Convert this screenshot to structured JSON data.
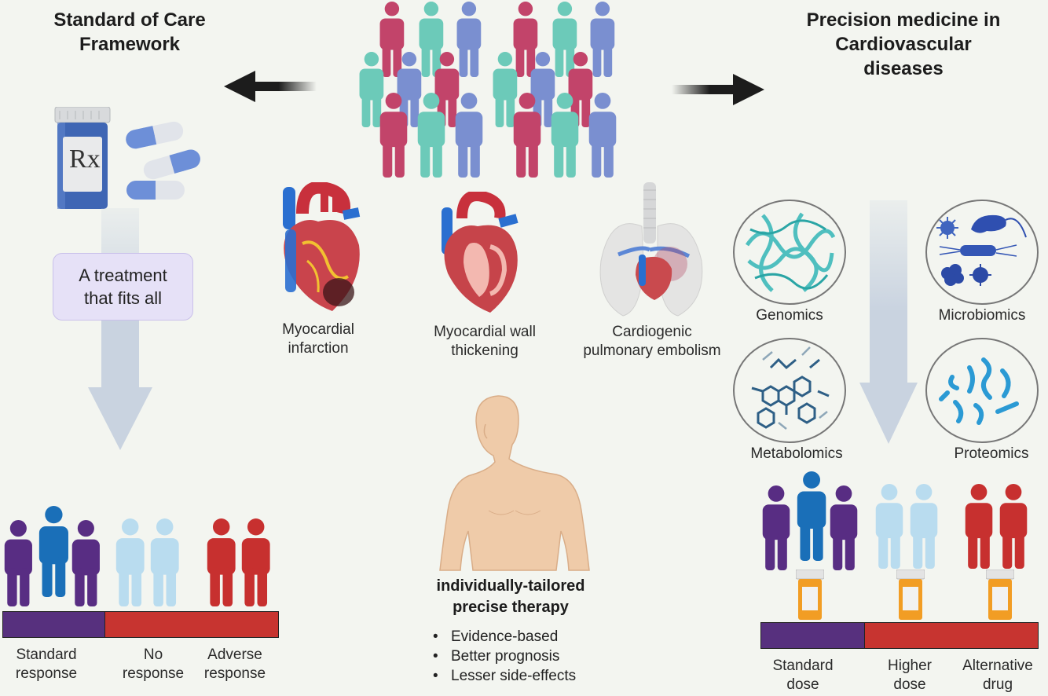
{
  "left": {
    "title_line1": "Standard of Care",
    "title_line2": "Framework",
    "box_line1": "A treatment",
    "box_line2": "that fits all",
    "labels": [
      {
        "line1": "Standard",
        "line2": "response"
      },
      {
        "line1": "No",
        "line2": "response"
      },
      {
        "line1": "Adverse",
        "line2": "response"
      }
    ]
  },
  "right": {
    "title_line1": "Precision medicine in",
    "title_line2": "Cardiovascular",
    "title_line3": "diseases",
    "omics": [
      "Genomics",
      "Microbiomics",
      "Metabolomics",
      "Proteomics"
    ],
    "labels": [
      {
        "line1": "Standard",
        "line2": "dose"
      },
      {
        "line1": "Higher",
        "line2": "dose"
      },
      {
        "line1": "Alternative",
        "line2": "drug"
      }
    ]
  },
  "center": {
    "diseases": [
      {
        "line1": "Myocardial",
        "line2": "infarction"
      },
      {
        "line1": "Myocardial wall",
        "line2": "thickening"
      },
      {
        "line1": "Cardiogenic",
        "line2": "pulmonary embolism"
      }
    ],
    "therapy_line1": "individually-tailored",
    "therapy_line2": "precise therapy",
    "bullets": [
      "Evidence-based",
      "Better prognosis",
      "Lesser side-effects"
    ]
  },
  "rx_label": "Rx",
  "colors": {
    "pink": "#c2446a",
    "teal": "#6ccab9",
    "blue": "#7a8fd0",
    "purple": "#582d83",
    "royal": "#1a6fb8",
    "lightblue": "#b9dcef",
    "red": "#c7302f"
  }
}
